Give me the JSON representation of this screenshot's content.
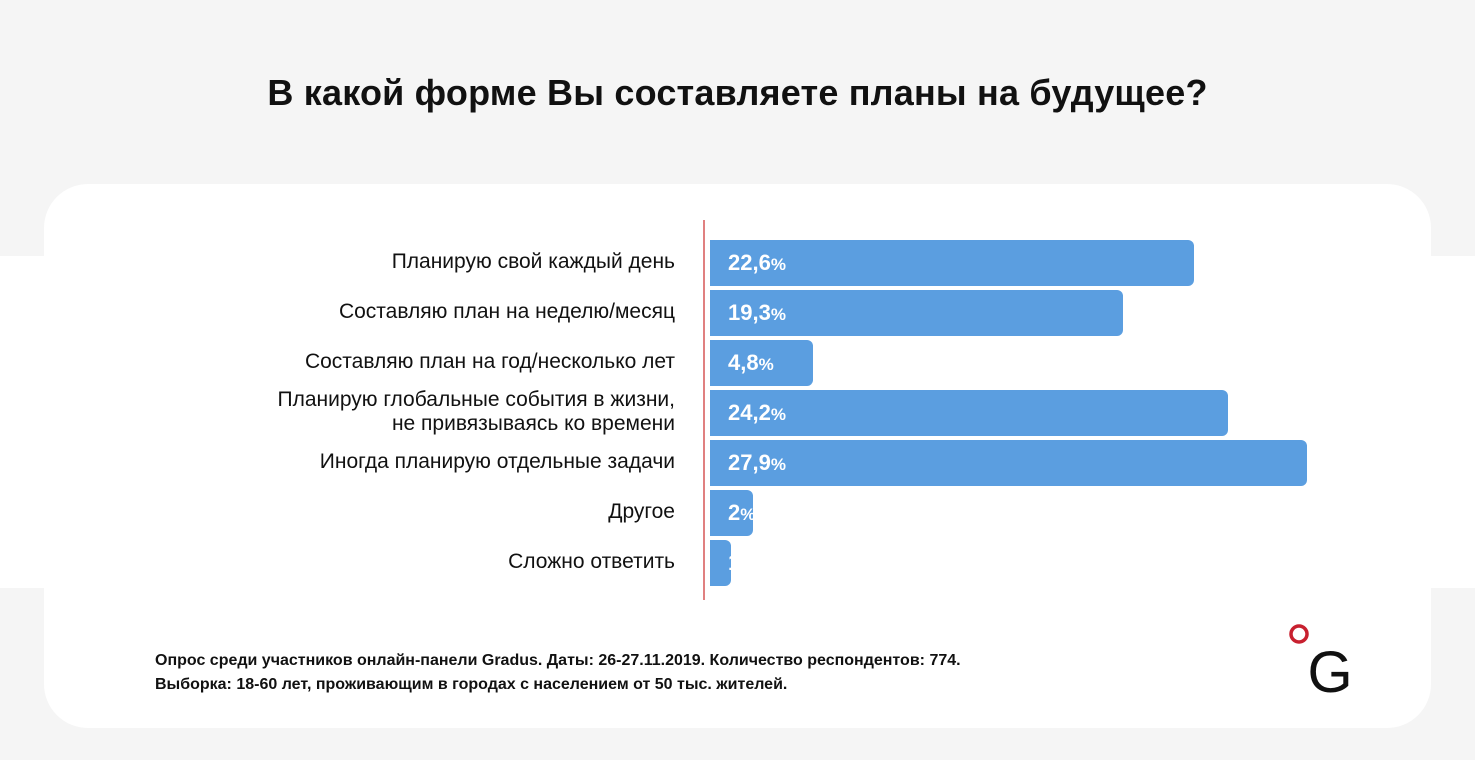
{
  "chart_data": {
    "type": "bar",
    "orientation": "horizontal",
    "title": "В какой форме Вы составляете планы на будущее?",
    "categories": [
      [
        "Планирую свой каждый день"
      ],
      [
        "Составляю план на неделю/месяц"
      ],
      [
        "Составляю план на год/несколько лет"
      ],
      [
        "Планирую глобальные события в жизни,",
        "не привязываясь ко времени"
      ],
      [
        "Иногда планирую отдельные задачи"
      ],
      [
        "Другое"
      ],
      [
        "Сложно ответить"
      ]
    ],
    "values": [
      22.6,
      19.3,
      4.8,
      24.2,
      27.9,
      2,
      1.0
    ],
    "value_labels": [
      "22,6",
      "19,3",
      "4,8",
      "24,2",
      "27,9",
      "2",
      "1,0"
    ],
    "unit": "%",
    "xlim": [
      0,
      27.9
    ],
    "grid": false,
    "legend": "none",
    "bar_color": "#5b9ee0",
    "axis_color": "#e08080"
  },
  "footnote": {
    "line1": "Опрос среди участников онлайн-панели Gradus. Даты: 26-27.11.2019. Количество респондентов: 774.",
    "line2": "Выборка: 18-60 лет, проживающим в городах с населением от 50 тыс. жителей."
  },
  "logo": {
    "letter": "G",
    "dot_color": "#c8202f",
    "letter_color": "#111111"
  }
}
